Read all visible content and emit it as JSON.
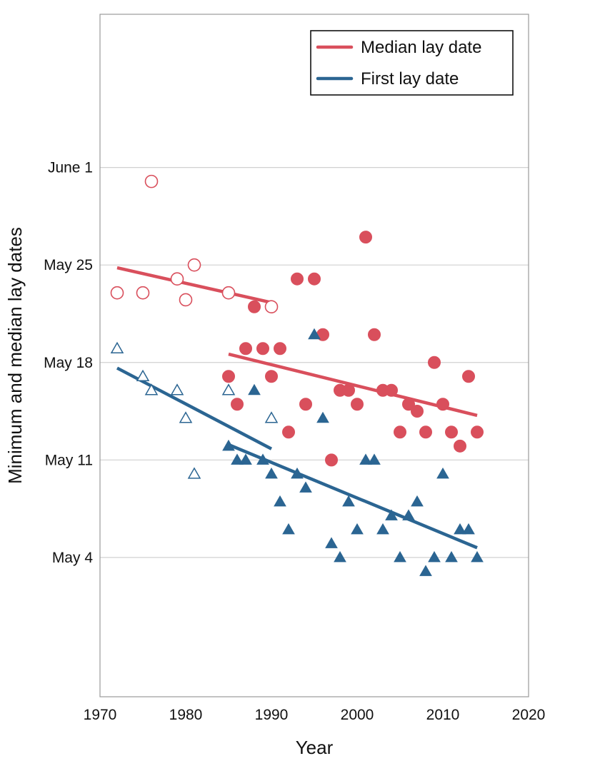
{
  "chart_data": {
    "type": "scatter",
    "title": "",
    "xlabel": "Year",
    "ylabel": "Minimum and median lay dates",
    "xlim": [
      1970,
      2020
    ],
    "x_ticks": [
      1970,
      1980,
      1990,
      2000,
      2010,
      2020
    ],
    "y_axis": {
      "unit": "day of year",
      "range": [
        114,
        163
      ],
      "ticks": [
        {
          "value": 124,
          "label": "May 4"
        },
        {
          "value": 131,
          "label": "May 11"
        },
        {
          "value": 138,
          "label": "May 18"
        },
        {
          "value": 145,
          "label": "May 25"
        },
        {
          "value": 152,
          "label": "June 1"
        }
      ]
    },
    "grid": "horizontal",
    "legend_position": "top-right",
    "legend": [
      {
        "label": "Median lay date",
        "color": "#d94f5c"
      },
      {
        "label": "First lay date",
        "color": "#2b6592"
      }
    ],
    "series": [
      {
        "name": "Median lay date",
        "color": "#d94f5c",
        "marker": "circle",
        "filled": false,
        "points": [
          [
            1972,
            143
          ],
          [
            1975,
            143
          ],
          [
            1976,
            151
          ],
          [
            1979,
            144
          ],
          [
            1980,
            142.5
          ],
          [
            1981,
            145
          ],
          [
            1985,
            143
          ],
          [
            1990,
            142
          ]
        ]
      },
      {
        "name": "Median lay date",
        "color": "#d94f5c",
        "marker": "circle",
        "filled": true,
        "points": [
          [
            1985,
            137
          ],
          [
            1986,
            135
          ],
          [
            1987,
            139
          ],
          [
            1988,
            142
          ],
          [
            1989,
            139
          ],
          [
            1990,
            137
          ],
          [
            1991,
            139
          ],
          [
            1992,
            133
          ],
          [
            1993,
            144
          ],
          [
            1994,
            135
          ],
          [
            1995,
            144
          ],
          [
            1996,
            140
          ],
          [
            1997,
            131
          ],
          [
            1998,
            136
          ],
          [
            1999,
            136
          ],
          [
            2000,
            135
          ],
          [
            2001,
            147
          ],
          [
            2002,
            140
          ],
          [
            2003,
            136
          ],
          [
            2004,
            136
          ],
          [
            2005,
            133
          ],
          [
            2006,
            135
          ],
          [
            2007,
            134.5
          ],
          [
            2008,
            133
          ],
          [
            2009,
            138
          ],
          [
            2010,
            135
          ],
          [
            2011,
            133
          ],
          [
            2012,
            132
          ],
          [
            2013,
            137
          ],
          [
            2014,
            133
          ]
        ]
      },
      {
        "name": "First lay date",
        "color": "#2b6592",
        "marker": "triangle",
        "filled": false,
        "points": [
          [
            1972,
            139
          ],
          [
            1975,
            137
          ],
          [
            1976,
            136
          ],
          [
            1979,
            136
          ],
          [
            1980,
            134
          ],
          [
            1981,
            130
          ],
          [
            1985,
            136
          ],
          [
            1990,
            134
          ]
        ]
      },
      {
        "name": "First lay date",
        "color": "#2b6592",
        "marker": "triangle",
        "filled": true,
        "points": [
          [
            1985,
            132
          ],
          [
            1986,
            131
          ],
          [
            1987,
            131
          ],
          [
            1988,
            136
          ],
          [
            1989,
            131
          ],
          [
            1990,
            130
          ],
          [
            1991,
            128
          ],
          [
            1992,
            126
          ],
          [
            1993,
            130
          ],
          [
            1994,
            129
          ],
          [
            1995,
            140
          ],
          [
            1996,
            134
          ],
          [
            1997,
            125
          ],
          [
            1998,
            124
          ],
          [
            1999,
            128
          ],
          [
            2000,
            126
          ],
          [
            2001,
            131
          ],
          [
            2002,
            131
          ],
          [
            2003,
            126
          ],
          [
            2004,
            127
          ],
          [
            2005,
            124
          ],
          [
            2006,
            127
          ],
          [
            2007,
            128
          ],
          [
            2008,
            123
          ],
          [
            2009,
            124
          ],
          [
            2010,
            130
          ],
          [
            2011,
            124
          ],
          [
            2012,
            126
          ],
          [
            2013,
            126
          ],
          [
            2014,
            124
          ]
        ]
      }
    ],
    "trendlines": [
      {
        "series": "Median lay date",
        "color": "#d94f5c",
        "from": [
          1972,
          144.8
        ],
        "to": [
          1990,
          142.3
        ]
      },
      {
        "series": "Median lay date",
        "color": "#d94f5c",
        "from": [
          1985,
          138.6
        ],
        "to": [
          2014,
          134.2
        ]
      },
      {
        "series": "First lay date",
        "color": "#2b6592",
        "from": [
          1972,
          137.6
        ],
        "to": [
          1990,
          131.8
        ]
      },
      {
        "series": "First lay date",
        "color": "#2b6592",
        "from": [
          1985,
          132.1
        ],
        "to": [
          2014,
          124.7
        ]
      }
    ]
  }
}
